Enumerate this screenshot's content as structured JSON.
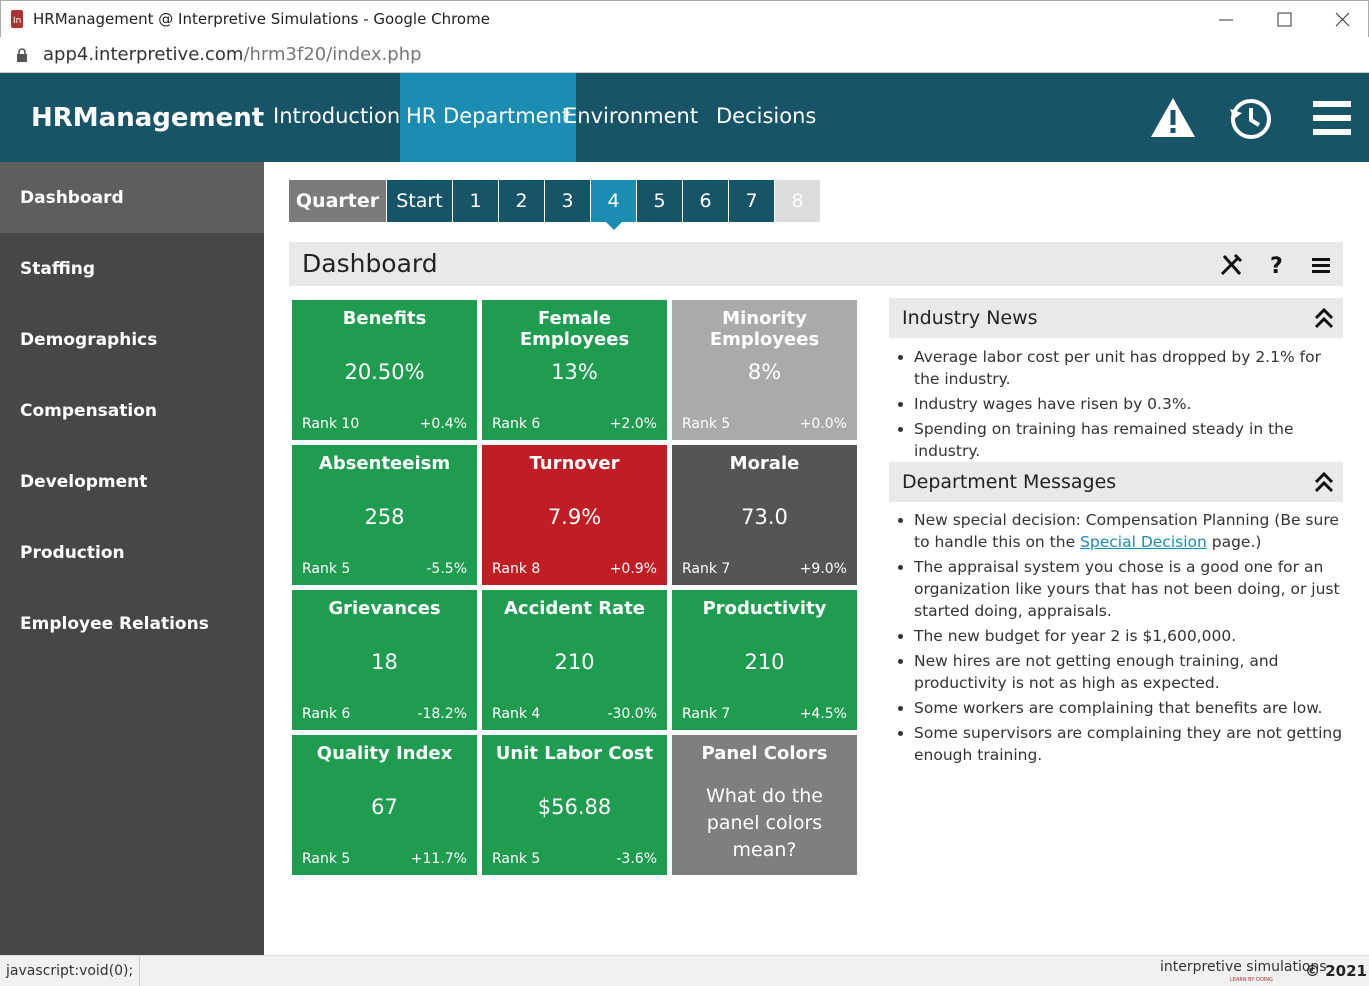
{
  "window": {
    "title": "HRManagement @ Interpretive Simulations - Google Chrome",
    "url_host": "app4.interpretive.com",
    "url_path": "/hrm3f20/index.php"
  },
  "nav": {
    "brand": "HRManagement",
    "tabs": [
      "Introduction",
      "HR Department",
      "Environment",
      "Decisions"
    ],
    "active_tab": 1
  },
  "sidebar": {
    "items": [
      "Dashboard",
      "Staffing",
      "Demographics",
      "Compensation",
      "Development",
      "Production",
      "Employee Relations"
    ],
    "active": 0
  },
  "quarters": {
    "label": "Quarter",
    "items": [
      "Start",
      "1",
      "2",
      "3",
      "4",
      "5",
      "6",
      "7",
      "8"
    ],
    "active": 4,
    "disabled": [
      8
    ]
  },
  "dashboard": {
    "title": "Dashboard",
    "tiles": [
      {
        "title": "Benefits",
        "value": "20.50%",
        "rank": "Rank 10",
        "change": "+0.4%",
        "color": "green"
      },
      {
        "title": "Female Employees",
        "value": "13%",
        "rank": "Rank 6",
        "change": "+2.0%",
        "color": "green"
      },
      {
        "title": "Minority Employees",
        "value": "8%",
        "rank": "Rank 5",
        "change": "+0.0%",
        "color": "silver"
      },
      {
        "title": "Absenteeism",
        "value": "258",
        "rank": "Rank 5",
        "change": "-5.5%",
        "color": "green"
      },
      {
        "title": "Turnover",
        "value": "7.9%",
        "rank": "Rank 8",
        "change": "+0.9%",
        "color": "red"
      },
      {
        "title": "Morale",
        "value": "73.0",
        "rank": "Rank 7",
        "change": "+9.0%",
        "color": "dark"
      },
      {
        "title": "Grievances",
        "value": "18",
        "rank": "Rank 6",
        "change": "-18.2%",
        "color": "green"
      },
      {
        "title": "Accident Rate",
        "value": "210",
        "rank": "Rank 4",
        "change": "-30.0%",
        "color": "green"
      },
      {
        "title": "Productivity",
        "value": "210",
        "rank": "Rank 7",
        "change": "+4.5%",
        "color": "green"
      },
      {
        "title": "Quality Index",
        "value": "67",
        "rank": "Rank 5",
        "change": "+11.7%",
        "color": "green"
      },
      {
        "title": "Unit Labor Cost",
        "value": "$56.88",
        "rank": "Rank 5",
        "change": "-3.6%",
        "color": "green"
      },
      {
        "title": "Panel Colors",
        "text": "What do the panel colors mean?",
        "color": "gray"
      }
    ]
  },
  "industry_news": {
    "title": "Industry News",
    "items": [
      "Average labor cost per unit has dropped by 2.1% for the industry.",
      "Industry wages have risen by 0.3%.",
      "Spending on training has remained steady in the industry."
    ]
  },
  "department_messages": {
    "title": "Department Messages",
    "items": [
      {
        "before": "New special decision: Compensation Planning (Be sure to handle this on the ",
        "link": "Special Decision",
        "after": " page.)"
      },
      {
        "text": "The appraisal system you chose is a good one for an organization like yours that has not been doing, or just started doing, appraisals."
      },
      {
        "text": "The new budget for year 2 is $1,600,000."
      },
      {
        "text": "New hires are not getting enough training, and productivity is not as high as expected."
      },
      {
        "text": "Some workers are complaining that benefits are low."
      },
      {
        "text": "Some supervisors are complaining they are not getting enough training."
      }
    ]
  },
  "footer": {
    "status": "javascript:void(0);",
    "logo": "interpretive simulations",
    "tagline": "LEARN BY DOING",
    "copyright": "© 2021"
  }
}
